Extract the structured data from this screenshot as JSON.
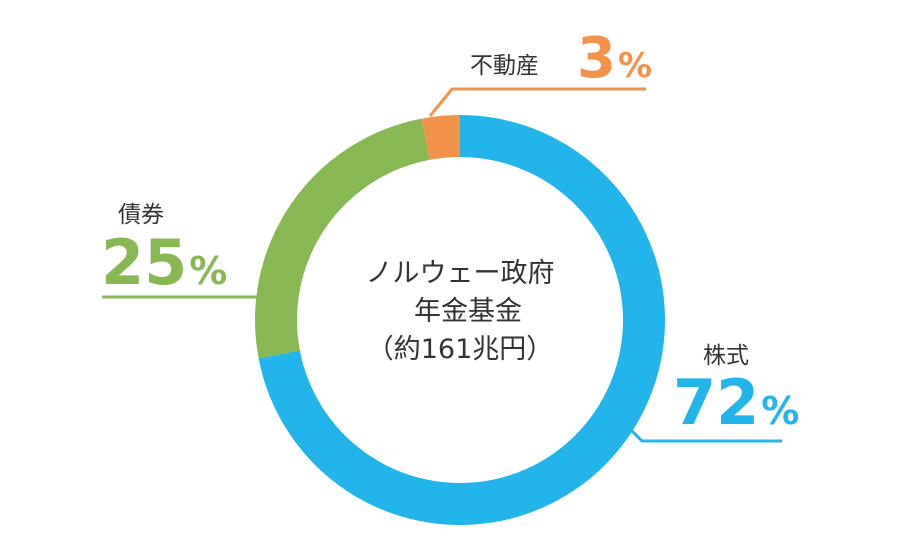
{
  "chart_data": {
    "type": "pie",
    "title_lines": [
      "ノルウェー政府",
      "年金基金",
      "（約161兆円）"
    ],
    "slices": [
      {
        "label": "株式",
        "value": 72,
        "pct_text": "72",
        "unit": "%",
        "color": "#22b5eb"
      },
      {
        "label": "債券",
        "value": 25,
        "pct_text": "25",
        "unit": "%",
        "color": "#88b854"
      },
      {
        "label": "不動産",
        "value": 3,
        "pct_text": "3",
        "unit": "%",
        "color": "#f5924a"
      }
    ]
  }
}
